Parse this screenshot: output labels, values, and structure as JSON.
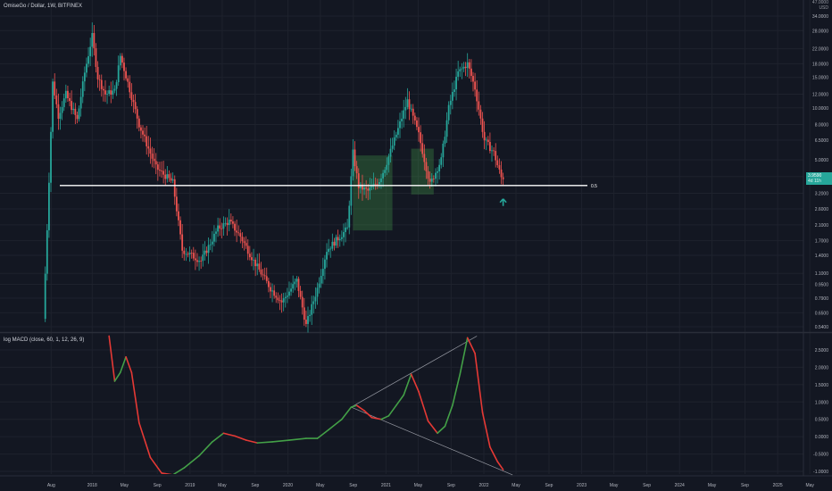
{
  "header": {
    "title": "OmiseGo / Dollar, 1W, BITFINEX",
    "currency_top": "47.0000",
    "currency_unit": "USD"
  },
  "macd": {
    "title": "log MACD (close, 60, 1, 12, 26, 9)"
  },
  "price_tag": {
    "value": "3.9590",
    "time": "4d 11h"
  },
  "chart_data": [
    {
      "type": "candlestick",
      "title": "OmiseGo / Dollar, 1W, BITFINEX",
      "scale": "log",
      "ylim": [
        0.5,
        47
      ],
      "x_ticks": [
        "Aug",
        "2018",
        "May",
        "Sep",
        "2019",
        "May",
        "Sep",
        "2020",
        "May",
        "Sep",
        "2021",
        "May",
        "Sep",
        "2022",
        "May",
        "Sep",
        "2023",
        "May",
        "Sep",
        "2024",
        "May",
        "Sep",
        "2025",
        "May"
      ],
      "y_ticks": [
        "34.0000",
        "28.0000",
        "22.0000",
        "18.0000",
        "15.0000",
        "12.0000",
        "10.0000",
        "8.0000",
        "6.5000",
        "5.0000",
        "4.0000",
        "3.2000",
        "2.6000",
        "2.1000",
        "1.7000",
        "1.4000",
        "1.1000",
        "0.9500",
        "0.7900",
        "0.6500",
        "0.5400"
      ],
      "horizontal_line": {
        "value": 3.55,
        "label": "0.5"
      },
      "up_color": "#26a69a",
      "down_color": "#ef5350",
      "envelope": [
        {
          "x": "2017-07-10",
          "y": 0.6
        },
        {
          "x": "2017-07-24",
          "y": 2.0
        },
        {
          "x": "2017-08-14",
          "y": 14.0
        },
        {
          "x": "2017-09-04",
          "y": 9.0
        },
        {
          "x": "2017-10-02",
          "y": 12.0
        },
        {
          "x": "2017-11-13",
          "y": 8.5
        },
        {
          "x": "2017-12-11",
          "y": 16.0
        },
        {
          "x": "2018-01-08",
          "y": 26.0
        },
        {
          "x": "2018-01-29",
          "y": 15.0
        },
        {
          "x": "2018-02-26",
          "y": 12.0
        },
        {
          "x": "2018-04-02",
          "y": 12.5
        },
        {
          "x": "2018-04-23",
          "y": 20.0
        },
        {
          "x": "2018-05-21",
          "y": 14.0
        },
        {
          "x": "2018-07-02",
          "y": 8.0
        },
        {
          "x": "2018-09-03",
          "y": 4.5
        },
        {
          "x": "2018-11-05",
          "y": 3.7
        },
        {
          "x": "2018-12-10",
          "y": 1.5
        },
        {
          "x": "2019-02-18",
          "y": 1.3
        },
        {
          "x": "2019-04-22",
          "y": 2.0
        },
        {
          "x": "2019-06-03",
          "y": 2.2
        },
        {
          "x": "2019-07-15",
          "y": 1.8
        },
        {
          "x": "2019-09-02",
          "y": 1.3
        },
        {
          "x": "2019-11-04",
          "y": 0.9
        },
        {
          "x": "2019-12-16",
          "y": 0.75
        },
        {
          "x": "2020-02-10",
          "y": 1.0
        },
        {
          "x": "2020-03-16",
          "y": 0.55
        },
        {
          "x": "2020-04-27",
          "y": 0.9
        },
        {
          "x": "2020-06-01",
          "y": 1.5
        },
        {
          "x": "2020-07-20",
          "y": 1.8
        },
        {
          "x": "2020-08-17",
          "y": 2.0
        },
        {
          "x": "2020-09-07",
          "y": 5.5
        },
        {
          "x": "2020-09-28",
          "y": 3.5
        },
        {
          "x": "2020-11-02",
          "y": 3.3
        },
        {
          "x": "2020-12-14",
          "y": 3.8
        },
        {
          "x": "2021-01-04",
          "y": 4.5
        },
        {
          "x": "2021-02-15",
          "y": 7.0
        },
        {
          "x": "2021-03-29",
          "y": 11.0
        },
        {
          "x": "2021-05-10",
          "y": 7.0
        },
        {
          "x": "2021-06-21",
          "y": 3.6
        },
        {
          "x": "2021-08-02",
          "y": 5.0
        },
        {
          "x": "2021-08-30",
          "y": 10.0
        },
        {
          "x": "2021-10-04",
          "y": 16.0
        },
        {
          "x": "2021-11-08",
          "y": 18.0
        },
        {
          "x": "2021-12-06",
          "y": 13.0
        },
        {
          "x": "2022-01-10",
          "y": 6.5
        },
        {
          "x": "2022-02-14",
          "y": 5.5
        },
        {
          "x": "2022-03-14",
          "y": 3.95
        }
      ],
      "boxes": [
        {
          "x0": "2020-08-31",
          "x1": "2021-01-25",
          "y_low": 1.95,
          "y_high": 5.3
        },
        {
          "x0": "2021-04-05",
          "x1": "2021-06-28",
          "y_low": 3.15,
          "y_high": 5.8
        }
      ],
      "arrow": {
        "x": "2022-03-14",
        "y": 2.8
      }
    },
    {
      "type": "line",
      "title": "log MACD (close, 60, 1, 12, 26, 9)",
      "ylim": [
        -1.05,
        2.9
      ],
      "y_ticks": [
        "2.5000",
        "2.0000",
        "1.5000",
        "1.0000",
        "0.5000",
        "0.0000",
        "-0.5000",
        "-1.0000"
      ],
      "up_color": "#43a047",
      "down_color": "#e53935",
      "series": [
        {
          "x": "2018-03-05",
          "y": 2.9
        },
        {
          "x": "2018-03-26",
          "y": 1.6
        },
        {
          "x": "2018-04-16",
          "y": 1.85
        },
        {
          "x": "2018-05-07",
          "y": 2.3
        },
        {
          "x": "2018-05-28",
          "y": 1.85
        },
        {
          "x": "2018-06-25",
          "y": 0.4
        },
        {
          "x": "2018-08-06",
          "y": -0.6
        },
        {
          "x": "2018-09-17",
          "y": -1.05
        },
        {
          "x": "2018-10-29",
          "y": -1.1
        },
        {
          "x": "2018-12-10",
          "y": -0.9
        },
        {
          "x": "2019-02-04",
          "y": -0.55
        },
        {
          "x": "2019-03-25",
          "y": -0.15
        },
        {
          "x": "2019-05-06",
          "y": 0.1
        },
        {
          "x": "2019-06-17",
          "y": 0.02
        },
        {
          "x": "2019-07-29",
          "y": -0.1
        },
        {
          "x": "2019-09-09",
          "y": -0.18
        },
        {
          "x": "2019-11-04",
          "y": -0.15
        },
        {
          "x": "2020-01-06",
          "y": -0.1
        },
        {
          "x": "2020-03-09",
          "y": -0.05
        },
        {
          "x": "2020-04-20",
          "y": -0.05
        },
        {
          "x": "2020-06-01",
          "y": 0.2
        },
        {
          "x": "2020-07-20",
          "y": 0.5
        },
        {
          "x": "2020-08-24",
          "y": 0.85
        },
        {
          "x": "2020-09-14",
          "y": 0.9
        },
        {
          "x": "2020-10-12",
          "y": 0.75
        },
        {
          "x": "2020-11-09",
          "y": 0.55
        },
        {
          "x": "2020-12-14",
          "y": 0.5
        },
        {
          "x": "2021-01-11",
          "y": 0.6
        },
        {
          "x": "2021-02-08",
          "y": 0.9
        },
        {
          "x": "2021-03-08",
          "y": 1.2
        },
        {
          "x": "2021-04-05",
          "y": 1.8
        },
        {
          "x": "2021-05-03",
          "y": 1.3
        },
        {
          "x": "2021-06-07",
          "y": 0.45
        },
        {
          "x": "2021-07-12",
          "y": 0.1
        },
        {
          "x": "2021-08-09",
          "y": 0.3
        },
        {
          "x": "2021-09-06",
          "y": 0.9
        },
        {
          "x": "2021-10-04",
          "y": 1.8
        },
        {
          "x": "2021-11-01",
          "y": 2.85
        },
        {
          "x": "2021-11-29",
          "y": 2.4
        },
        {
          "x": "2021-12-27",
          "y": 0.7
        },
        {
          "x": "2022-01-24",
          "y": -0.3
        },
        {
          "x": "2022-02-21",
          "y": -0.72
        },
        {
          "x": "2022-03-14",
          "y": -0.95
        }
      ],
      "trendlines": [
        {
          "x0": "2020-08-24",
          "y0": 0.85,
          "x1": "2021-12-06",
          "y1": 2.9
        },
        {
          "x0": "2020-08-24",
          "y0": 0.85,
          "x1": "2022-04-18",
          "y1": -1.1
        }
      ]
    }
  ]
}
